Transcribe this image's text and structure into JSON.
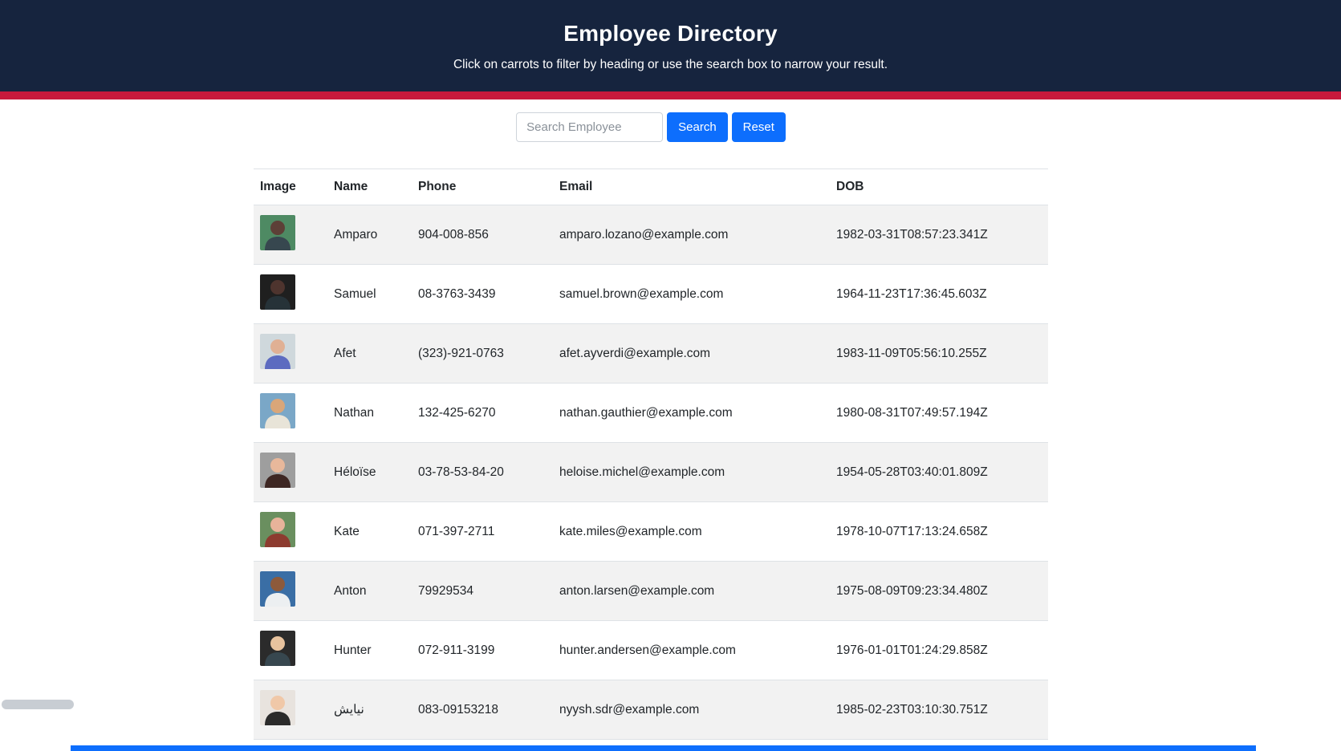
{
  "header": {
    "title": "Employee Directory",
    "subtitle": "Click on carrots to filter by heading or use the search box to narrow your result."
  },
  "search": {
    "placeholder": "Search Employee",
    "search_label": "Search",
    "reset_label": "Reset"
  },
  "colors": {
    "header_bg": "#16243e",
    "accent_stripe": "#c8193c",
    "primary_button": "#0d6efd",
    "row_stripe": "#f2f2f2"
  },
  "table": {
    "columns": [
      "Image",
      "Name",
      "Phone",
      "Email",
      "DOB"
    ],
    "rows": [
      {
        "name": "Amparo",
        "phone": "904-008-856",
        "email": "amparo.lozano@example.com",
        "dob": "1982-03-31T08:57:23.341Z",
        "avatar": {
          "bg": "#4e8a63",
          "skin": "#5d4037",
          "shirt": "#37474f"
        }
      },
      {
        "name": "Samuel",
        "phone": "08-3763-3439",
        "email": "samuel.brown@example.com",
        "dob": "1964-11-23T17:36:45.603Z",
        "avatar": {
          "bg": "#1f1f1f",
          "skin": "#4e342e",
          "shirt": "#263238"
        }
      },
      {
        "name": "Afet",
        "phone": "(323)-921-0763",
        "email": "afet.ayverdi@example.com",
        "dob": "1983-11-09T05:56:10.255Z",
        "avatar": {
          "bg": "#cfd8dc",
          "skin": "#e0b094",
          "shirt": "#5c6bc0"
        }
      },
      {
        "name": "Nathan",
        "phone": "132-425-6270",
        "email": "nathan.gauthier@example.com",
        "dob": "1980-08-31T07:49:57.194Z",
        "avatar": {
          "bg": "#7aa7c7",
          "skin": "#d9a679",
          "shirt": "#e8e4d8"
        }
      },
      {
        "name": "Héloïse",
        "phone": "03-78-53-84-20",
        "email": "heloise.michel@example.com",
        "dob": "1954-05-28T03:40:01.809Z",
        "avatar": {
          "bg": "#9e9e9e",
          "skin": "#e8b89b",
          "shirt": "#3e2723"
        }
      },
      {
        "name": "Kate",
        "phone": "071-397-2711",
        "email": "kate.miles@example.com",
        "dob": "1978-10-07T17:13:24.658Z",
        "avatar": {
          "bg": "#6a8f5f",
          "skin": "#e8b39a",
          "shirt": "#8d3b2f"
        }
      },
      {
        "name": "Anton",
        "phone": "79929534",
        "email": "anton.larsen@example.com",
        "dob": "1975-08-09T09:23:34.480Z",
        "avatar": {
          "bg": "#3a6ea5",
          "skin": "#8d5a3b",
          "shirt": "#eceff1"
        }
      },
      {
        "name": "Hunter",
        "phone": "072-911-3199",
        "email": "hunter.andersen@example.com",
        "dob": "1976-01-01T01:24:29.858Z",
        "avatar": {
          "bg": "#2b2b2b",
          "skin": "#e8c39e",
          "shirt": "#37474f"
        }
      },
      {
        "name": "نيايش",
        "phone": "083-09153218",
        "email": "nyysh.sdr@example.com",
        "dob": "1985-02-23T03:10:30.751Z",
        "avatar": {
          "bg": "#e8e3de",
          "skin": "#f0c8a8",
          "shirt": "#2b2b2b"
        }
      }
    ]
  }
}
